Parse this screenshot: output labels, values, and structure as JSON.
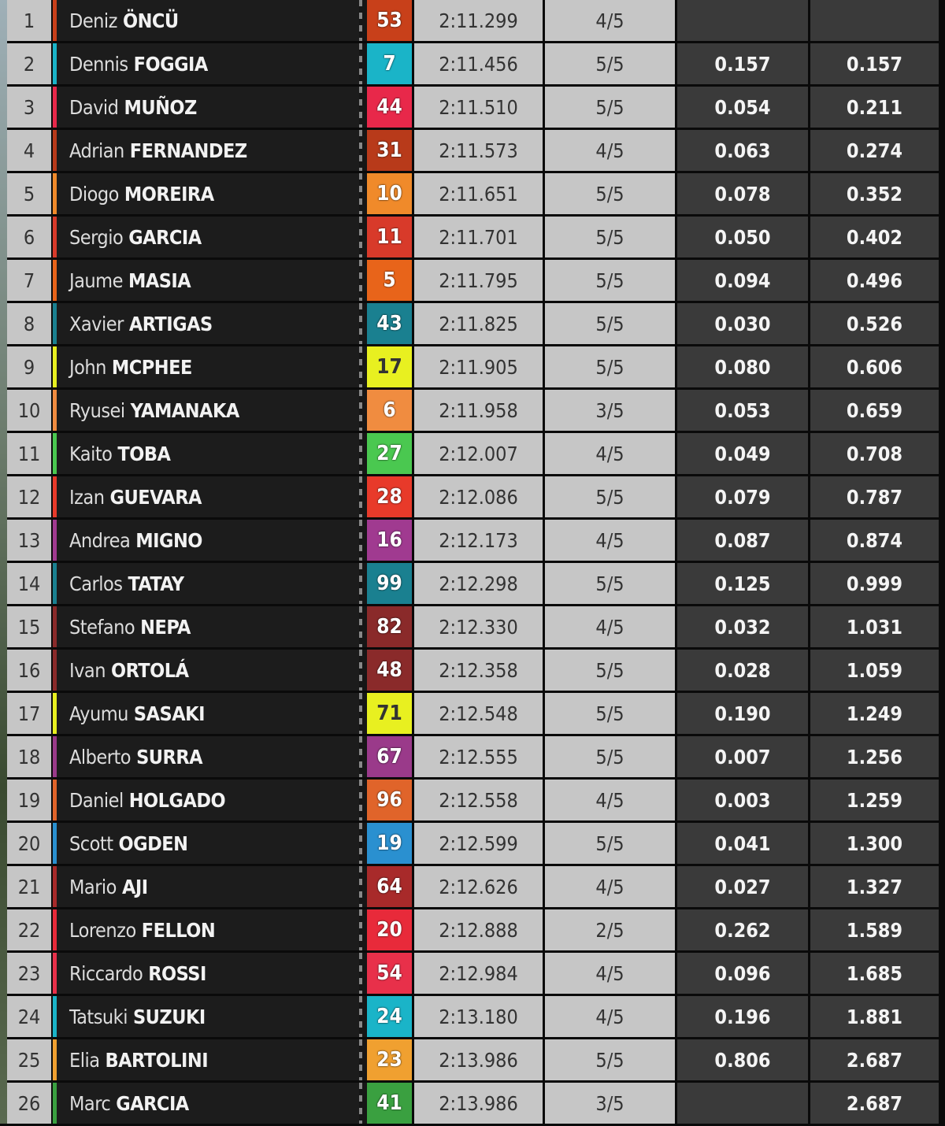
{
  "rows": [
    {
      "pos": "1",
      "first": "Deniz",
      "last": "ÖNCÜ",
      "number": "53",
      "color": "#c8401a",
      "time": "2:11.299",
      "laps": "4/5",
      "gap": "",
      "total": ""
    },
    {
      "pos": "2",
      "first": "Dennis",
      "last": "FOGGIA",
      "number": "7",
      "color": "#1ab4c8",
      "time": "2:11.456",
      "laps": "5/5",
      "gap": "0.157",
      "total": "0.157"
    },
    {
      "pos": "3",
      "first": "David",
      "last": "MUÑOZ",
      "number": "44",
      "color": "#e8284a",
      "time": "2:11.510",
      "laps": "5/5",
      "gap": "0.054",
      "total": "0.211"
    },
    {
      "pos": "4",
      "first": "Adrian",
      "last": "FERNANDEZ",
      "number": "31",
      "color": "#b83a1a",
      "time": "2:11.573",
      "laps": "4/5",
      "gap": "0.063",
      "total": "0.274"
    },
    {
      "pos": "5",
      "first": "Diogo",
      "last": "MOREIRA",
      "number": "10",
      "color": "#f08a2a",
      "time": "2:11.651",
      "laps": "5/5",
      "gap": "0.078",
      "total": "0.352"
    },
    {
      "pos": "6",
      "first": "Sergio",
      "last": "GARCIA",
      "number": "11",
      "color": "#d83a2a",
      "time": "2:11.701",
      "laps": "5/5",
      "gap": "0.050",
      "total": "0.402"
    },
    {
      "pos": "7",
      "first": "Jaume",
      "last": "MASIA",
      "number": "5",
      "color": "#e8641a",
      "time": "2:11.795",
      "laps": "5/5",
      "gap": "0.094",
      "total": "0.496"
    },
    {
      "pos": "8",
      "first": "Xavier",
      "last": "ARTIGAS",
      "number": "43",
      "color": "#1a8090",
      "time": "2:11.825",
      "laps": "5/5",
      "gap": "0.030",
      "total": "0.526"
    },
    {
      "pos": "9",
      "first": "John",
      "last": "MCPHEE",
      "number": "17",
      "color": "#e8f020",
      "dark": true,
      "time": "2:11.905",
      "laps": "5/5",
      "gap": "0.080",
      "total": "0.606"
    },
    {
      "pos": "10",
      "first": "Ryusei",
      "last": "YAMANAKA",
      "number": "6",
      "color": "#f08c40",
      "time": "2:11.958",
      "laps": "3/5",
      "gap": "0.053",
      "total": "0.659"
    },
    {
      "pos": "11",
      "first": "Kaito",
      "last": "TOBA",
      "number": "27",
      "color": "#4ac850",
      "time": "2:12.007",
      "laps": "4/5",
      "gap": "0.049",
      "total": "0.708"
    },
    {
      "pos": "12",
      "first": "Izan",
      "last": "GUEVARA",
      "number": "28",
      "color": "#e83a2a",
      "time": "2:12.086",
      "laps": "5/5",
      "gap": "0.079",
      "total": "0.787"
    },
    {
      "pos": "13",
      "first": "Andrea",
      "last": "MIGNO",
      "number": "16",
      "color": "#a03a90",
      "time": "2:12.173",
      "laps": "4/5",
      "gap": "0.087",
      "total": "0.874"
    },
    {
      "pos": "14",
      "first": "Carlos",
      "last": "TATAY",
      "number": "99",
      "color": "#1a8090",
      "time": "2:12.298",
      "laps": "5/5",
      "gap": "0.125",
      "total": "0.999"
    },
    {
      "pos": "15",
      "first": "Stefano",
      "last": "NEPA",
      "number": "82",
      "color": "#8a2a2a",
      "time": "2:12.330",
      "laps": "4/5",
      "gap": "0.032",
      "total": "1.031"
    },
    {
      "pos": "16",
      "first": "Ivan",
      "last": "ORTOLÁ",
      "number": "48",
      "color": "#8a2a2a",
      "time": "2:12.358",
      "laps": "5/5",
      "gap": "0.028",
      "total": "1.059"
    },
    {
      "pos": "17",
      "first": "Ayumu",
      "last": "SASAKI",
      "number": "71",
      "color": "#e8f020",
      "dark": true,
      "time": "2:12.548",
      "laps": "5/5",
      "gap": "0.190",
      "total": "1.249"
    },
    {
      "pos": "18",
      "first": "Alberto",
      "last": "SURRA",
      "number": "67",
      "color": "#9a3a8a",
      "time": "2:12.555",
      "laps": "5/5",
      "gap": "0.007",
      "total": "1.256"
    },
    {
      "pos": "19",
      "first": "Daniel",
      "last": "HOLGADO",
      "number": "96",
      "color": "#e0642a",
      "time": "2:12.558",
      "laps": "4/5",
      "gap": "0.003",
      "total": "1.259"
    },
    {
      "pos": "20",
      "first": "Scott",
      "last": "OGDEN",
      "number": "19",
      "color": "#2a90d0",
      "time": "2:12.599",
      "laps": "5/5",
      "gap": "0.041",
      "total": "1.300"
    },
    {
      "pos": "21",
      "first": "Mario",
      "last": "AJI",
      "number": "64",
      "color": "#a82a2a",
      "time": "2:12.626",
      "laps": "4/5",
      "gap": "0.027",
      "total": "1.327"
    },
    {
      "pos": "22",
      "first": "Lorenzo",
      "last": "FELLON",
      "number": "20",
      "color": "#e82a3a",
      "time": "2:12.888",
      "laps": "2/5",
      "gap": "0.262",
      "total": "1.589"
    },
    {
      "pos": "23",
      "first": "Riccardo",
      "last": "ROSSI",
      "number": "54",
      "color": "#e8304a",
      "time": "2:12.984",
      "laps": "4/5",
      "gap": "0.096",
      "total": "1.685"
    },
    {
      "pos": "24",
      "first": "Tatsuki",
      "last": "SUZUKI",
      "number": "24",
      "color": "#1ab4c8",
      "time": "2:13.180",
      "laps": "4/5",
      "gap": "0.196",
      "total": "1.881"
    },
    {
      "pos": "25",
      "first": "Elia",
      "last": "BARTOLINI",
      "number": "23",
      "color": "#f0a030",
      "time": "2:13.986",
      "laps": "5/5",
      "gap": "0.806",
      "total": "2.687"
    },
    {
      "pos": "26",
      "first": "Marc",
      "last": "GARCIA",
      "number": "41",
      "color": "#3aa040",
      "time": "2:13.986",
      "laps": "3/5",
      "gap": "",
      "total": "2.687"
    }
  ]
}
